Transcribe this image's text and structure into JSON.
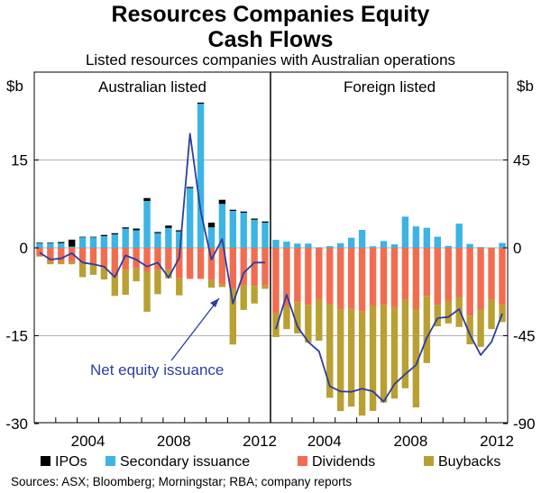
{
  "title_line1": "Resources Companies Equity",
  "title_line2": "Cash Flows",
  "subtitle": "Listed resources companies with Australian operations",
  "source": "Sources: ASX; Bloomberg; Morningstar; RBA; company reports",
  "colors": {
    "ipos": "#000000",
    "secondary": "#3cb4e5",
    "dividends": "#f26d50",
    "buybacks": "#b9a031",
    "line": "#2b3f9e",
    "grid": "#b3b3b3"
  },
  "chart_data": [
    {
      "type": "bar",
      "panel": "Australian listed",
      "unit_label": "$b",
      "axis_side": "left",
      "ylim": [
        -30,
        30
      ],
      "yticks": [
        -30,
        -15,
        0,
        15
      ],
      "xticks": [
        "2004",
        "2008",
        "2012"
      ],
      "periods": [
        "2002 H1",
        "2002 H2",
        "2003 H1",
        "2003 H2",
        "2004 H1",
        "2004 H2",
        "2005 H1",
        "2005 H2",
        "2006 H1",
        "2006 H2",
        "2007 H1",
        "2007 H2",
        "2008 H1",
        "2008 H2",
        "2009 H1",
        "2009 H2",
        "2010 H1",
        "2010 H2",
        "2011 H1",
        "2011 H2",
        "2012 H1",
        "2012 H2"
      ],
      "series": [
        {
          "name": "IPOs",
          "values": [
            0.1,
            0.1,
            0.2,
            1.2,
            0.1,
            0.1,
            0.2,
            0.2,
            0.2,
            0.3,
            0.5,
            0.2,
            0.4,
            0.2,
            0.2,
            0.2,
            0.8,
            0.7,
            0.2,
            0.2,
            0.2,
            0.2
          ]
        },
        {
          "name": "Secondary issuance",
          "values": [
            0.8,
            0.8,
            0.8,
            0.2,
            1.8,
            1.8,
            2.0,
            2.3,
            3.3,
            3.0,
            8.0,
            2.5,
            3.4,
            2.8,
            10.2,
            24.6,
            3.5,
            7.5,
            6.3,
            6.0,
            4.8,
            4.3
          ]
        },
        {
          "name": "Dividends",
          "values": [
            -1.4,
            -2.4,
            -2.3,
            -2.4,
            -2.5,
            -2.9,
            -3.4,
            -4.9,
            -3.8,
            -3.5,
            -4.0,
            -3.7,
            -3.8,
            -5.1,
            -5.3,
            -5.3,
            -5.5,
            -6.2,
            -7.0,
            -6.4,
            -6.5,
            -6.4
          ]
        },
        {
          "name": "Buybacks",
          "values": [
            -0.1,
            -0.4,
            -0.5,
            -0.4,
            -2.5,
            -1.7,
            -2.0,
            -3.3,
            -4.2,
            -2.2,
            -6.9,
            -4.2,
            -1.4,
            -3.0,
            0,
            0,
            -1.3,
            -0.5,
            -9.5,
            -4.2,
            -3.0,
            -0.6
          ]
        },
        {
          "name": "Net equity issuance",
          "type": "line",
          "values": [
            -0.8,
            -2.0,
            -1.8,
            -0.9,
            -2.5,
            -2.8,
            -3.2,
            -5.0,
            -1.3,
            -2.0,
            -3.2,
            -2.5,
            -5.1,
            -1.7,
            19.5,
            6.2,
            -2.0,
            1.5,
            -9.5,
            -4.3,
            -2.5,
            -2.5
          ]
        }
      ]
    },
    {
      "type": "bar",
      "panel": "Foreign listed",
      "unit_label": "$b",
      "axis_side": "right",
      "ylim": [
        -90,
        90
      ],
      "yticks": [
        -90,
        -45,
        0,
        45
      ],
      "xticks": [
        "2004",
        "2008",
        "2012"
      ],
      "periods": [
        "2002 H1",
        "2002 H2",
        "2003 H1",
        "2003 H2",
        "2004 H1",
        "2004 H2",
        "2005 H1",
        "2005 H2",
        "2006 H1",
        "2006 H2",
        "2007 H1",
        "2007 H2",
        "2008 H1",
        "2008 H2",
        "2009 H1",
        "2009 H2",
        "2010 H1",
        "2010 H2",
        "2011 H1",
        "2011 H2",
        "2012 H1",
        "2012 H2"
      ],
      "series": [
        {
          "name": "IPOs",
          "values": [
            0,
            0,
            0,
            0,
            0,
            0,
            0,
            0,
            0,
            0,
            0,
            0,
            0,
            0,
            0,
            0,
            0,
            0,
            0,
            0,
            0,
            0
          ]
        },
        {
          "name": "Secondary issuance",
          "values": [
            4.1,
            3.2,
            2.2,
            2.2,
            0.3,
            0.9,
            2.4,
            5.2,
            9.2,
            0.8,
            3.5,
            1.8,
            16.0,
            11.0,
            10.3,
            5.7,
            1.0,
            12.4,
            2.0,
            0.4,
            0.2,
            2.5
          ]
        },
        {
          "name": "Dividends",
          "values": [
            -33.5,
            -29.8,
            -27.8,
            -29.2,
            -26.3,
            -29.0,
            -31.4,
            -31.2,
            -32.6,
            -29.8,
            -29.2,
            -30.4,
            -26.6,
            -31.4,
            -24.6,
            -29.2,
            -27.2,
            -25.4,
            -34.7,
            -31.6,
            -26.5,
            -29.2
          ]
        },
        {
          "name": "Dividends and buybacks total",
          "hidden": true,
          "values": []
        },
        {
          "name": "Buybacks",
          "values": [
            -12.2,
            -11.8,
            -16.0,
            -19.3,
            -21.2,
            -47.8,
            -52.2,
            -50.1,
            -53.3,
            -53.7,
            -50.0,
            -46.8,
            -45.3,
            -50.3,
            -34.4,
            -11.0,
            -11.5,
            -15.1,
            -14.7,
            -19.1,
            -15.1,
            -8.8
          ]
        },
        {
          "name": "Net equity issuance",
          "type": "line",
          "values": [
            -41.6,
            -24.0,
            -40.3,
            -48.2,
            -53.0,
            -70.9,
            -73.5,
            -73.7,
            -72.1,
            -73.5,
            -78.8,
            -69.8,
            -64.7,
            -60.0,
            -46.1,
            -36.0,
            -35.4,
            -31.4,
            -44.5,
            -54.9,
            -48.2,
            -33.7
          ]
        }
      ]
    }
  ],
  "legend": [
    {
      "key": "ipos",
      "label": "IPOs"
    },
    {
      "key": "secondary",
      "label": "Secondary issuance"
    },
    {
      "key": "dividends",
      "label": "Dividends"
    },
    {
      "key": "buybacks",
      "label": "Buybacks"
    }
  ],
  "annotation": "Net equity issuance"
}
